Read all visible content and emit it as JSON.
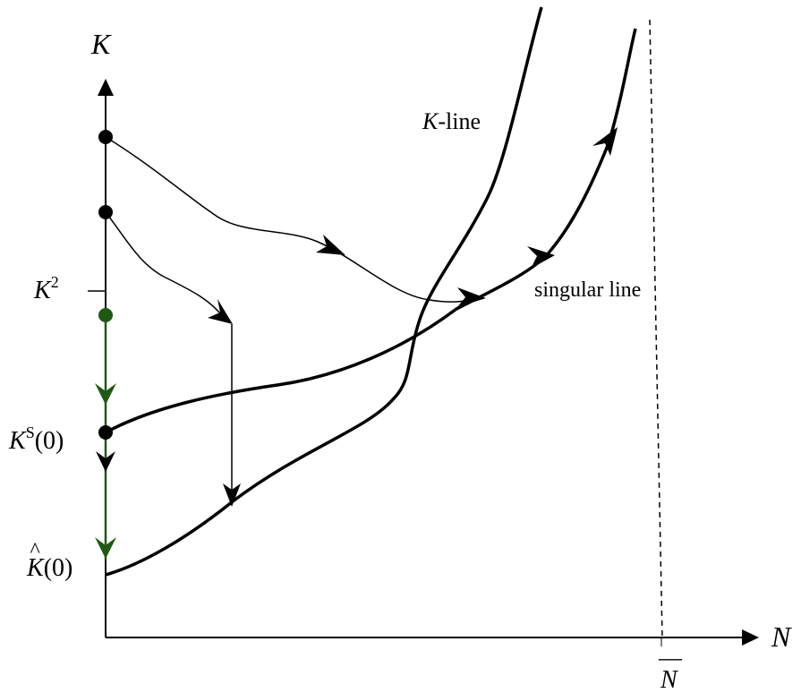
{
  "axes": {
    "y_label": "K",
    "x_label": "N"
  },
  "labels": {
    "k_line_var": "K",
    "k_line_rest": "-line",
    "singular_line": "singular line",
    "k2_base": "K",
    "k2_sup": "2",
    "ks_base": "K",
    "ks_sup": "S",
    "ks_arg": "(0)",
    "khat_base": "K",
    "khat_accent": "^",
    "khat_arg": "(0)",
    "nbar_base": "N",
    "nbar_accent": "—"
  },
  "colors": {
    "ink": "#000000",
    "green": "#1f5a12"
  }
}
